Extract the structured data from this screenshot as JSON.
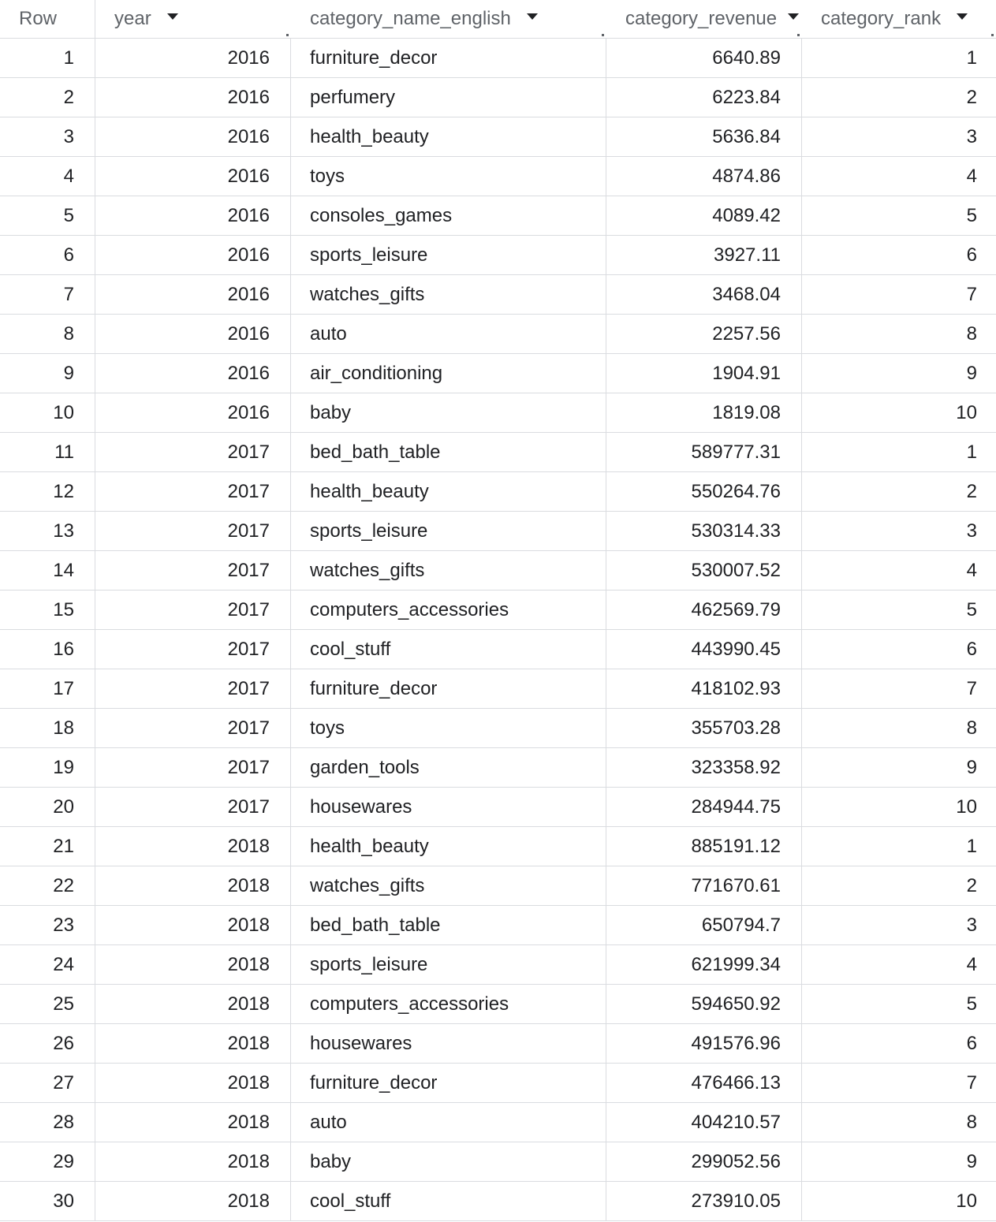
{
  "columns": {
    "row": "Row",
    "year": "year",
    "category": "category_name_english",
    "revenue": "category_revenue",
    "rank": "category_rank"
  },
  "rows": [
    {
      "row": "1",
      "year": "2016",
      "category": "furniture_decor",
      "revenue": "6640.89",
      "rank": "1"
    },
    {
      "row": "2",
      "year": "2016",
      "category": "perfumery",
      "revenue": "6223.84",
      "rank": "2"
    },
    {
      "row": "3",
      "year": "2016",
      "category": "health_beauty",
      "revenue": "5636.84",
      "rank": "3"
    },
    {
      "row": "4",
      "year": "2016",
      "category": "toys",
      "revenue": "4874.86",
      "rank": "4"
    },
    {
      "row": "5",
      "year": "2016",
      "category": "consoles_games",
      "revenue": "4089.42",
      "rank": "5"
    },
    {
      "row": "6",
      "year": "2016",
      "category": "sports_leisure",
      "revenue": "3927.11",
      "rank": "6"
    },
    {
      "row": "7",
      "year": "2016",
      "category": "watches_gifts",
      "revenue": "3468.04",
      "rank": "7"
    },
    {
      "row": "8",
      "year": "2016",
      "category": "auto",
      "revenue": "2257.56",
      "rank": "8"
    },
    {
      "row": "9",
      "year": "2016",
      "category": "air_conditioning",
      "revenue": "1904.91",
      "rank": "9"
    },
    {
      "row": "10",
      "year": "2016",
      "category": "baby",
      "revenue": "1819.08",
      "rank": "10"
    },
    {
      "row": "11",
      "year": "2017",
      "category": "bed_bath_table",
      "revenue": "589777.31",
      "rank": "1"
    },
    {
      "row": "12",
      "year": "2017",
      "category": "health_beauty",
      "revenue": "550264.76",
      "rank": "2"
    },
    {
      "row": "13",
      "year": "2017",
      "category": "sports_leisure",
      "revenue": "530314.33",
      "rank": "3"
    },
    {
      "row": "14",
      "year": "2017",
      "category": "watches_gifts",
      "revenue": "530007.52",
      "rank": "4"
    },
    {
      "row": "15",
      "year": "2017",
      "category": "computers_accessories",
      "revenue": "462569.79",
      "rank": "5"
    },
    {
      "row": "16",
      "year": "2017",
      "category": "cool_stuff",
      "revenue": "443990.45",
      "rank": "6"
    },
    {
      "row": "17",
      "year": "2017",
      "category": "furniture_decor",
      "revenue": "418102.93",
      "rank": "7"
    },
    {
      "row": "18",
      "year": "2017",
      "category": "toys",
      "revenue": "355703.28",
      "rank": "8"
    },
    {
      "row": "19",
      "year": "2017",
      "category": "garden_tools",
      "revenue": "323358.92",
      "rank": "9"
    },
    {
      "row": "20",
      "year": "2017",
      "category": "housewares",
      "revenue": "284944.75",
      "rank": "10"
    },
    {
      "row": "21",
      "year": "2018",
      "category": "health_beauty",
      "revenue": "885191.12",
      "rank": "1"
    },
    {
      "row": "22",
      "year": "2018",
      "category": "watches_gifts",
      "revenue": "771670.61",
      "rank": "2"
    },
    {
      "row": "23",
      "year": "2018",
      "category": "bed_bath_table",
      "revenue": "650794.7",
      "rank": "3"
    },
    {
      "row": "24",
      "year": "2018",
      "category": "sports_leisure",
      "revenue": "621999.34",
      "rank": "4"
    },
    {
      "row": "25",
      "year": "2018",
      "category": "computers_accessories",
      "revenue": "594650.92",
      "rank": "5"
    },
    {
      "row": "26",
      "year": "2018",
      "category": "housewares",
      "revenue": "491576.96",
      "rank": "6"
    },
    {
      "row": "27",
      "year": "2018",
      "category": "furniture_decor",
      "revenue": "476466.13",
      "rank": "7"
    },
    {
      "row": "28",
      "year": "2018",
      "category": "auto",
      "revenue": "404210.57",
      "rank": "8"
    },
    {
      "row": "29",
      "year": "2018",
      "category": "baby",
      "revenue": "299052.56",
      "rank": "9"
    },
    {
      "row": "30",
      "year": "2018",
      "category": "cool_stuff",
      "revenue": "273910.05",
      "rank": "10"
    }
  ]
}
